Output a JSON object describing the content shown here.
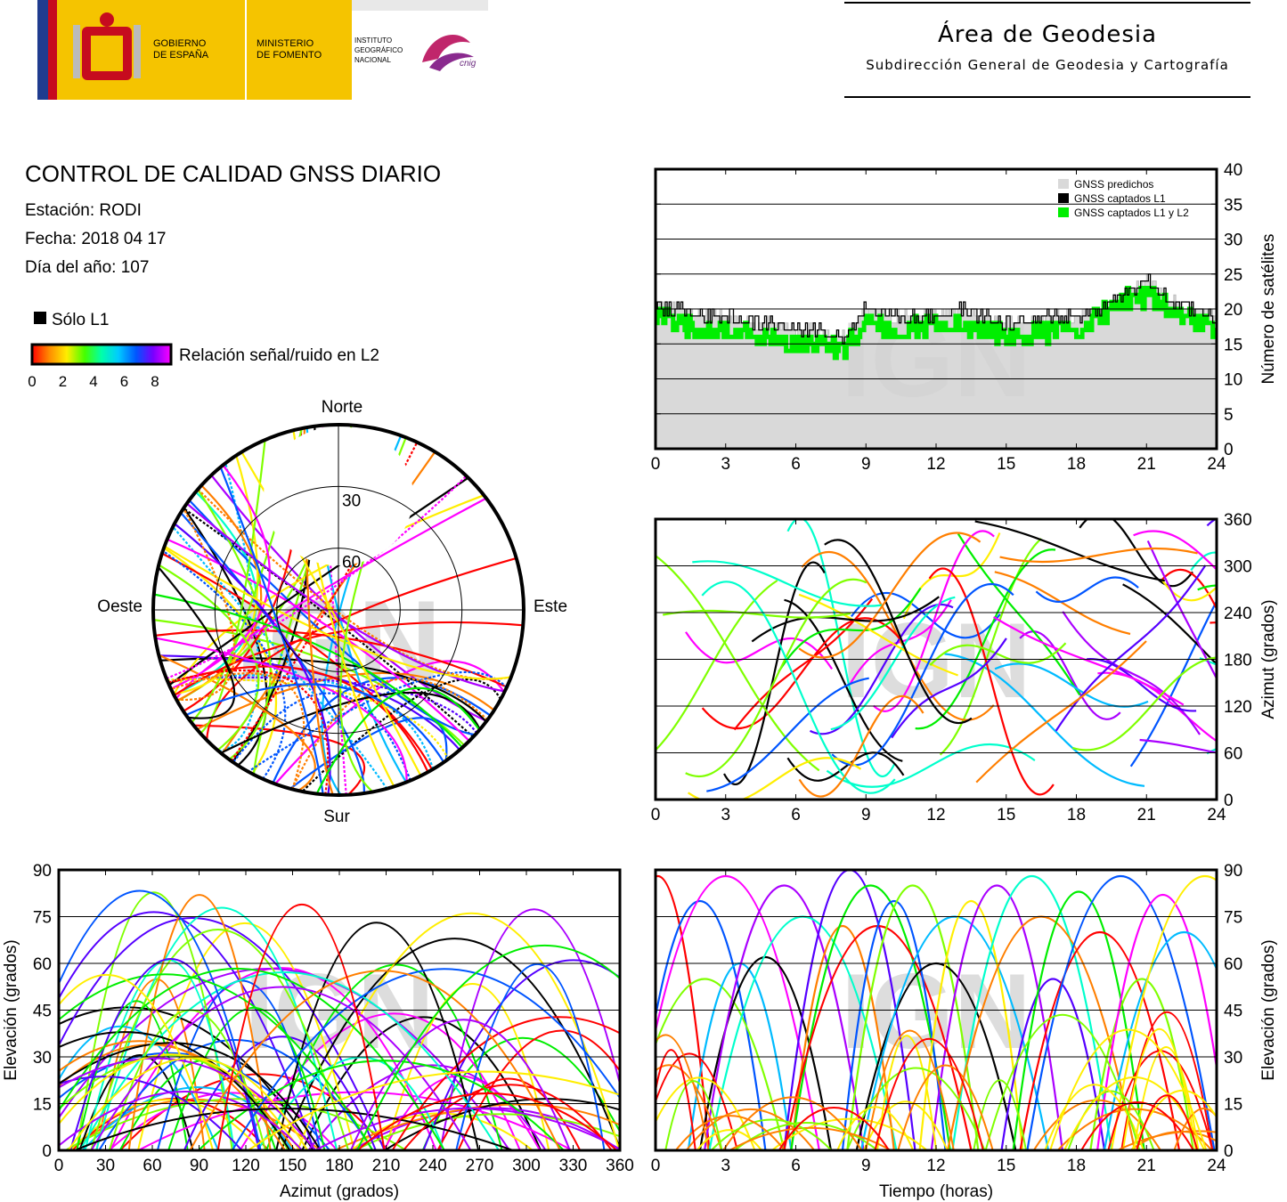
{
  "header": {
    "gov_line1": "GOBIERNO",
    "gov_line2": "DE ESPAÑA",
    "min_line1": "MINISTERIO",
    "min_line2": "DE FOMENTO",
    "ign_line1": "INSTITUTO",
    "ign_line2": "GEOGRÁFICO",
    "ign_line3": "NACIONAL",
    "cnig": "cnig",
    "area_title": "Área de Geodesia",
    "area_subtitle": "Subdirección General de Geodesia y Cartografía"
  },
  "report": {
    "title": "CONTROL DE CALIDAD GNSS DIARIO",
    "station": "Estación: RODI",
    "date": "Fecha: 2018 04 17",
    "doy": "Día del año: 107"
  },
  "legend": {
    "only_l1": "Sólo L1",
    "snr_label": "Relación señal/ruido en L2",
    "snr_ticks": [
      "0",
      "2",
      "4",
      "6",
      "8"
    ]
  },
  "colors": {
    "predicted_fill": "#d9d9d9",
    "l1": "#000000",
    "l1l2": "#00ee00",
    "palette": [
      "#ff0000",
      "#ff7f00",
      "#ffee00",
      "#7fff00",
      "#00ee00",
      "#00ffcc",
      "#00bbff",
      "#0055ff",
      "#5500ff",
      "#aa00ff",
      "#ff00ff"
    ]
  },
  "watermark": "IGN",
  "chart_data": [
    {
      "type": "area",
      "id": "satellites",
      "ylabel": "Número de satélites",
      "xlim": [
        0,
        24
      ],
      "ylim": [
        0,
        40
      ],
      "xticks": [
        "0",
        "3",
        "6",
        "9",
        "12",
        "15",
        "18",
        "21",
        "24"
      ],
      "yticks": [
        "0",
        "5",
        "10",
        "15",
        "20",
        "25",
        "30",
        "35",
        "40"
      ],
      "grid": true,
      "legend_position": "top-right",
      "series": [
        {
          "name": "GNSS predichos",
          "x": [
            0,
            1,
            2,
            3,
            4,
            5,
            6,
            7,
            8,
            9,
            10,
            11,
            12,
            13,
            14,
            15,
            16,
            17,
            18,
            19,
            20,
            21,
            22,
            23,
            24
          ],
          "values": [
            20,
            20,
            19,
            19,
            18,
            18,
            17,
            17,
            16,
            20,
            19,
            19,
            19,
            20,
            19,
            18,
            18,
            19,
            19,
            20,
            22,
            24,
            21,
            20,
            19
          ]
        },
        {
          "name": "GNSS captados L1",
          "x": [
            0,
            1,
            2,
            3,
            4,
            5,
            6,
            7,
            8,
            9,
            10,
            11,
            12,
            13,
            14,
            15,
            16,
            17,
            18,
            19,
            20,
            21,
            22,
            23,
            24
          ],
          "values": [
            20,
            20,
            19,
            19,
            18,
            18,
            17,
            17,
            16,
            20,
            19,
            19,
            19,
            20,
            19,
            18,
            18,
            19,
            19,
            20,
            22,
            24,
            21,
            20,
            19
          ]
        },
        {
          "name": "GNSS captados L1 y L2",
          "x": [
            0,
            1,
            2,
            3,
            4,
            5,
            6,
            7,
            8,
            9,
            10,
            11,
            12,
            13,
            14,
            15,
            16,
            17,
            18,
            19,
            20,
            21,
            22,
            23,
            24
          ],
          "values": [
            19,
            18,
            17,
            17,
            16,
            16,
            15,
            15,
            14,
            18,
            17,
            17,
            18,
            18,
            17,
            16,
            16,
            17,
            17,
            19,
            21,
            22,
            20,
            19,
            17
          ]
        }
      ]
    },
    {
      "type": "scatter",
      "id": "skyplot",
      "labels": {
        "north": "Norte",
        "south": "Sur",
        "east": "Este",
        "west": "Oeste"
      },
      "ring_labels": [
        "30",
        "60"
      ]
    },
    {
      "type": "scatter",
      "id": "azimuth-time",
      "ylabel": "Azimut (grados)",
      "xlim": [
        0,
        24
      ],
      "ylim": [
        0,
        360
      ],
      "xticks": [
        "0",
        "3",
        "6",
        "9",
        "12",
        "15",
        "18",
        "21",
        "24"
      ],
      "yticks": [
        "0",
        "60",
        "120",
        "180",
        "240",
        "300",
        "360"
      ],
      "grid": true
    },
    {
      "type": "scatter",
      "id": "elevation-azimuth",
      "xlabel": "Azimut (grados)",
      "ylabel": "Elevación (grados)",
      "xlim": [
        0,
        360
      ],
      "ylim": [
        0,
        90
      ],
      "xticks": [
        "0",
        "30",
        "60",
        "90",
        "120",
        "150",
        "180",
        "210",
        "240",
        "270",
        "300",
        "330",
        "360"
      ],
      "yticks": [
        "0",
        "15",
        "30",
        "45",
        "60",
        "75",
        "90"
      ],
      "grid": true
    },
    {
      "type": "scatter",
      "id": "elevation-time",
      "xlabel": "Tiempo (horas)",
      "ylabel": "Elevación (grados)",
      "xlim": [
        0,
        24
      ],
      "ylim": [
        0,
        90
      ],
      "xticks": [
        "0",
        "3",
        "6",
        "9",
        "12",
        "15",
        "18",
        "21",
        "24"
      ],
      "yticks": [
        "0",
        "15",
        "30",
        "45",
        "60",
        "75",
        "90"
      ],
      "grid": true,
      "peaks": [
        {
          "t": 0.1,
          "el": 88
        },
        {
          "t": 1.9,
          "el": 80
        },
        {
          "t": 2.1,
          "el": 55
        },
        {
          "t": 3.0,
          "el": 88
        },
        {
          "t": 3.6,
          "el": 60
        },
        {
          "t": 4.7,
          "el": 62
        },
        {
          "t": 5.5,
          "el": 85
        },
        {
          "t": 6.3,
          "el": 75
        },
        {
          "t": 8.0,
          "el": 72
        },
        {
          "t": 8.3,
          "el": 90
        },
        {
          "t": 9.2,
          "el": 85
        },
        {
          "t": 9.5,
          "el": 72
        },
        {
          "t": 10.2,
          "el": 80
        },
        {
          "t": 11.0,
          "el": 85
        },
        {
          "t": 12.0,
          "el": 60
        },
        {
          "t": 12.8,
          "el": 75
        },
        {
          "t": 13.5,
          "el": 80
        },
        {
          "t": 14.6,
          "el": 85
        },
        {
          "t": 16.1,
          "el": 88
        },
        {
          "t": 16.5,
          "el": 75
        },
        {
          "t": 17.0,
          "el": 55
        },
        {
          "t": 18.1,
          "el": 83
        },
        {
          "t": 19.0,
          "el": 70
        },
        {
          "t": 19.9,
          "el": 88
        },
        {
          "t": 20.8,
          "el": 55
        },
        {
          "t": 21.7,
          "el": 82
        },
        {
          "t": 22.6,
          "el": 70
        },
        {
          "t": 23.5,
          "el": 88
        }
      ]
    }
  ]
}
